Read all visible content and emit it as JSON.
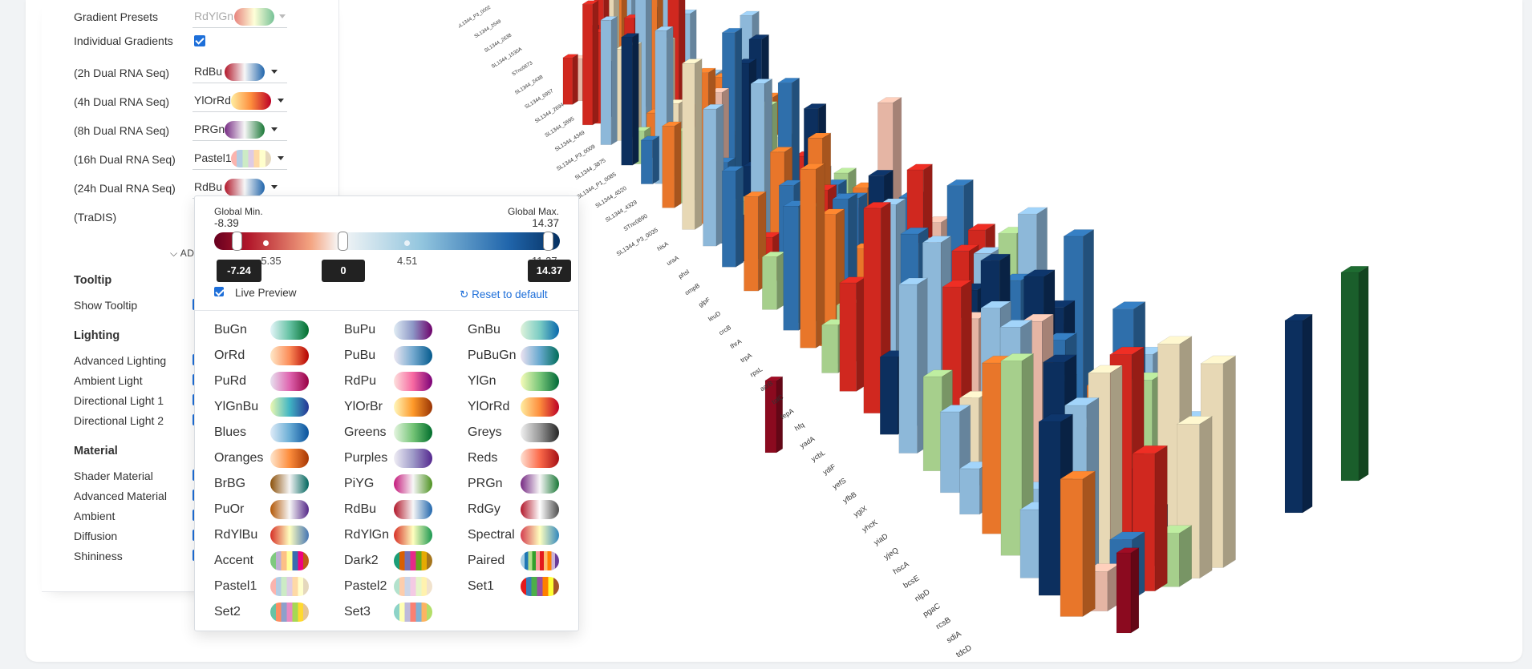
{
  "settings": {
    "gradient_presets": {
      "label": "Gradient Presets",
      "value": "RdYlGn"
    },
    "individual_gradients": {
      "label": "Individual Gradients",
      "checked": true
    },
    "tracks": [
      {
        "label": "(2h Dual RNA Seq)",
        "gradient": "RdBu"
      },
      {
        "label": "(4h Dual RNA Seq)",
        "gradient": "YlOrRd"
      },
      {
        "label": "(8h Dual RNA Seq)",
        "gradient": "PRGn"
      },
      {
        "label": "(16h Dual RNA Seq)",
        "gradient": "Pastel1"
      },
      {
        "label": "(24h Dual RNA Seq)",
        "gradient": "RdBu"
      },
      {
        "label": "(TraDIS)",
        "gradient": ""
      }
    ],
    "advanced_label": "ADVANCED",
    "tooltip": {
      "title": "Tooltip",
      "show": "Show Tooltip"
    },
    "lighting": {
      "title": "Lighting",
      "items": [
        "Advanced Lighting",
        "Ambient Light",
        "Directional Light 1",
        "Directional Light 2"
      ]
    },
    "material": {
      "title": "Material",
      "items": [
        "Shader Material",
        "Advanced Material",
        "Ambient",
        "Diffusion",
        "Shininess"
      ]
    }
  },
  "popover": {
    "global_min_label": "Global Min.",
    "global_min_value": "-8.39",
    "global_max_label": "Global Max.",
    "global_max_value": "14.37",
    "ticks": [
      "-5.35",
      "4.51",
      "11.37"
    ],
    "min_value": "-7.24",
    "mid_value": "0",
    "max_value": "14.37",
    "live_preview": "Live Preview",
    "reset": "Reset to default",
    "palettes": [
      "BuGn",
      "BuPu",
      "GnBu",
      "OrRd",
      "PuBu",
      "PuBuGn",
      "PuRd",
      "RdPu",
      "YlGn",
      "YlGnBu",
      "YlOrBr",
      "YlOrRd",
      "Blues",
      "Greens",
      "Greys",
      "Oranges",
      "Purples",
      "Reds",
      "BrBG",
      "PiYG",
      "PRGn",
      "PuOr",
      "RdBu",
      "RdGy",
      "RdYlBu",
      "RdYlGn",
      "Spectral",
      "Accent",
      "Dark2",
      "Paired",
      "Pastel1",
      "Pastel2",
      "Set1",
      "Set2",
      "Set3"
    ]
  },
  "viz": {
    "labels": [
      "SL1344_P3_0002",
      "SL1344_2549",
      "SL1344_2638",
      "SL1344_1530A",
      "STnc0673",
      "SL1344_2438",
      "SL1344_0957",
      "SL1344_2694",
      "SL1344_2695",
      "SL1344_4349",
      "SL1344_P3_0009",
      "SL1344_3875",
      "SL1344_P1_0085",
      "SL1344_4520",
      "SL1344_4329",
      "STnc0890",
      "SL1344_P3_0035",
      "hisA",
      "uraA",
      "phsl",
      "ompB",
      "glpF",
      "leuD",
      "crcB",
      "thrA",
      "trpA",
      "rpsL",
      "acrB",
      "tolC",
      "fepA",
      "hfq",
      "yadA",
      "ycbL",
      "ydiF",
      "yefS",
      "yfbB",
      "ygiX",
      "yhcK",
      "yiaD",
      "yjeQ",
      "hscA",
      "bcsE",
      "nlpD",
      "pgaC",
      "rcsB",
      "sdiA",
      "tdcD"
    ],
    "colors": {
      "blue": "#2f6fab",
      "light_blue": "#8db8d9",
      "red": "#d0281f",
      "dark_red": "#8b0a1f",
      "green": "#a6cf8c",
      "beige": "#e7d8b5",
      "navy": "#0c2f5e",
      "dark_green": "#1a5e2b",
      "orange": "#e8762a",
      "pink": "#e5b5a4"
    }
  }
}
